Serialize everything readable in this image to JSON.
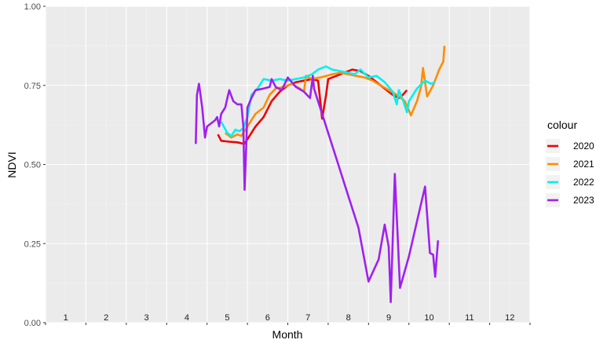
{
  "chart_data": {
    "type": "line",
    "xlabel": "Month",
    "ylabel": "NDVI",
    "xlim": [
      0,
      12
    ],
    "ylim": [
      0.0,
      1.0
    ],
    "y_ticks": [
      "0.00",
      "0.25",
      "0.50",
      "0.75",
      "1.00"
    ],
    "month_labels": [
      "1",
      "2",
      "3",
      "4",
      "5",
      "6",
      "7",
      "8",
      "9",
      "10",
      "11",
      "12"
    ],
    "legend_title": "colour",
    "legend_position": "right",
    "grid": true,
    "series": [
      {
        "name": "2020",
        "color": "#ee0000",
        "points": [
          [
            4.27,
            0.595
          ],
          [
            4.35,
            0.575
          ],
          [
            4.55,
            0.572
          ],
          [
            4.75,
            0.57
          ],
          [
            4.92,
            0.565
          ],
          [
            5.0,
            0.58
          ],
          [
            5.2,
            0.62
          ],
          [
            5.4,
            0.65
          ],
          [
            5.6,
            0.7
          ],
          [
            5.8,
            0.73
          ],
          [
            6.0,
            0.75
          ],
          [
            6.2,
            0.76
          ],
          [
            6.4,
            0.765
          ],
          [
            6.6,
            0.77
          ],
          [
            6.75,
            0.765
          ],
          [
            6.85,
            0.645
          ],
          [
            6.95,
            0.72
          ],
          [
            7.0,
            0.77
          ],
          [
            7.2,
            0.78
          ],
          [
            7.4,
            0.79
          ],
          [
            7.6,
            0.8
          ],
          [
            7.8,
            0.795
          ],
          [
            8.0,
            0.78
          ],
          [
            8.2,
            0.76
          ],
          [
            8.4,
            0.74
          ],
          [
            8.6,
            0.72
          ],
          [
            8.75,
            0.71
          ],
          [
            8.85,
            0.72
          ],
          [
            8.95,
            0.735
          ]
        ]
      },
      {
        "name": "2021",
        "color": "#ff8c00",
        "points": [
          [
            4.45,
            0.6
          ],
          [
            4.6,
            0.585
          ],
          [
            4.75,
            0.595
          ],
          [
            4.85,
            0.59
          ],
          [
            5.0,
            0.62
          ],
          [
            5.2,
            0.66
          ],
          [
            5.4,
            0.68
          ],
          [
            5.55,
            0.72
          ],
          [
            5.7,
            0.74
          ],
          [
            5.9,
            0.745
          ],
          [
            6.1,
            0.755
          ],
          [
            6.3,
            0.74
          ],
          [
            6.4,
            0.73
          ],
          [
            6.45,
            0.78
          ],
          [
            6.6,
            0.77
          ],
          [
            6.8,
            0.775
          ],
          [
            6.95,
            0.78
          ],
          [
            7.1,
            0.785
          ],
          [
            7.3,
            0.79
          ],
          [
            7.5,
            0.785
          ],
          [
            7.7,
            0.78
          ],
          [
            7.9,
            0.775
          ],
          [
            8.1,
            0.765
          ],
          [
            8.3,
            0.75
          ],
          [
            8.5,
            0.735
          ],
          [
            8.7,
            0.72
          ],
          [
            8.9,
            0.7
          ],
          [
            9.0,
            0.67
          ],
          [
            9.05,
            0.655
          ],
          [
            9.2,
            0.7
          ],
          [
            9.3,
            0.745
          ],
          [
            9.35,
            0.805
          ],
          [
            9.45,
            0.715
          ],
          [
            9.6,
            0.75
          ],
          [
            9.75,
            0.8
          ],
          [
            9.85,
            0.825
          ],
          [
            9.88,
            0.875
          ]
        ]
      },
      {
        "name": "2022",
        "color": "#00f0f0",
        "points": [
          [
            4.35,
            0.635
          ],
          [
            4.5,
            0.6
          ],
          [
            4.6,
            0.59
          ],
          [
            4.7,
            0.61
          ],
          [
            4.8,
            0.605
          ],
          [
            4.9,
            0.615
          ],
          [
            5.0,
            0.65
          ],
          [
            5.1,
            0.72
          ],
          [
            5.25,
            0.74
          ],
          [
            5.4,
            0.77
          ],
          [
            5.6,
            0.765
          ],
          [
            5.8,
            0.77
          ],
          [
            6.0,
            0.765
          ],
          [
            6.2,
            0.77
          ],
          [
            6.4,
            0.775
          ],
          [
            6.6,
            0.785
          ],
          [
            6.75,
            0.8
          ],
          [
            6.95,
            0.81
          ],
          [
            7.1,
            0.8
          ],
          [
            7.3,
            0.795
          ],
          [
            7.5,
            0.79
          ],
          [
            7.65,
            0.785
          ],
          [
            7.8,
            0.8
          ],
          [
            8.0,
            0.775
          ],
          [
            8.2,
            0.78
          ],
          [
            8.4,
            0.76
          ],
          [
            8.6,
            0.73
          ],
          [
            8.7,
            0.69
          ],
          [
            8.75,
            0.735
          ],
          [
            8.85,
            0.705
          ],
          [
            8.95,
            0.665
          ],
          [
            9.0,
            0.7
          ],
          [
            9.2,
            0.74
          ],
          [
            9.4,
            0.765
          ],
          [
            9.55,
            0.755
          ],
          [
            9.65,
            0.76
          ]
        ]
      },
      {
        "name": "2023",
        "color": "#a020f0",
        "points": [
          [
            3.72,
            0.565
          ],
          [
            3.75,
            0.72
          ],
          [
            3.8,
            0.755
          ],
          [
            3.88,
            0.68
          ],
          [
            3.95,
            0.585
          ],
          [
            4.0,
            0.62
          ],
          [
            4.1,
            0.63
          ],
          [
            4.2,
            0.64
          ],
          [
            4.25,
            0.65
          ],
          [
            4.3,
            0.62
          ],
          [
            4.35,
            0.66
          ],
          [
            4.45,
            0.68
          ],
          [
            4.55,
            0.735
          ],
          [
            4.65,
            0.7
          ],
          [
            4.75,
            0.69
          ],
          [
            4.85,
            0.69
          ],
          [
            4.9,
            0.62
          ],
          [
            4.93,
            0.42
          ],
          [
            4.97,
            0.55
          ],
          [
            5.0,
            0.68
          ],
          [
            5.1,
            0.71
          ],
          [
            5.2,
            0.735
          ],
          [
            5.4,
            0.74
          ],
          [
            5.55,
            0.745
          ],
          [
            5.6,
            0.77
          ],
          [
            5.7,
            0.745
          ],
          [
            5.85,
            0.735
          ],
          [
            6.0,
            0.775
          ],
          [
            6.2,
            0.745
          ],
          [
            6.4,
            0.73
          ],
          [
            6.55,
            0.71
          ],
          [
            6.62,
            0.78
          ],
          [
            6.65,
            0.74
          ],
          [
            6.8,
            0.68
          ],
          [
            7.0,
            0.6
          ],
          [
            7.25,
            0.5
          ],
          [
            7.5,
            0.4
          ],
          [
            7.75,
            0.3
          ],
          [
            8.0,
            0.13
          ],
          [
            8.25,
            0.2
          ],
          [
            8.4,
            0.31
          ],
          [
            8.5,
            0.24
          ],
          [
            8.55,
            0.065
          ],
          [
            8.65,
            0.47
          ],
          [
            8.78,
            0.11
          ],
          [
            9.0,
            0.21
          ],
          [
            9.2,
            0.32
          ],
          [
            9.4,
            0.43
          ],
          [
            9.52,
            0.22
          ],
          [
            9.6,
            0.215
          ],
          [
            9.65,
            0.145
          ],
          [
            9.72,
            0.26
          ]
        ]
      }
    ]
  }
}
